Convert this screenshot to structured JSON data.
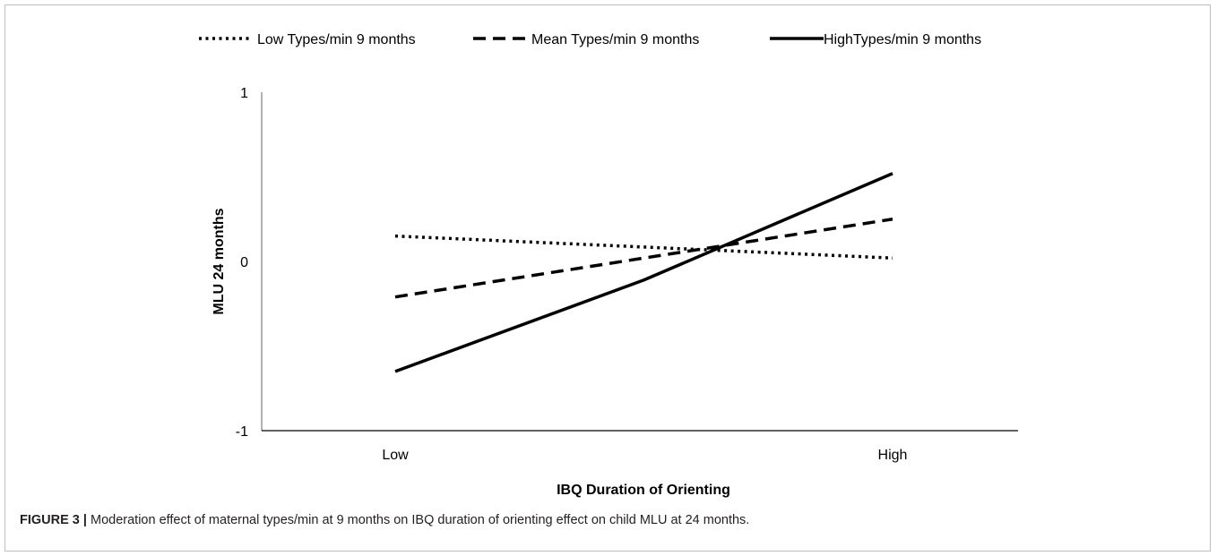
{
  "chart_data": {
    "type": "line",
    "categories": [
      "Low",
      "High"
    ],
    "series": [
      {
        "name": "Low Types/min 9 months",
        "values": [
          0.15,
          0.02
        ],
        "style": "dotted"
      },
      {
        "name": "Mean Types/min 9 months",
        "values": [
          -0.21,
          0.25
        ],
        "style": "dashed"
      },
      {
        "name": "HighTypes/min 9 months",
        "values": [
          -0.65,
          0.52
        ],
        "style": "solid",
        "mid_point": {
          "x": 0.5,
          "y": -0.11
        }
      }
    ],
    "xlabel": "IBQ Duration of Orienting",
    "ylabel": "MLU 24 months",
    "ylim": [
      -1,
      1
    ],
    "yticks": [
      "1",
      "0",
      "-1"
    ],
    "grid": false,
    "legend_position": "top",
    "line_color": "#000000"
  },
  "caption": {
    "label": "FIGURE 3 |",
    "text": " Moderation effect of maternal types/min at 9 months on IBQ duration of orienting effect on child MLU at 24 months."
  }
}
